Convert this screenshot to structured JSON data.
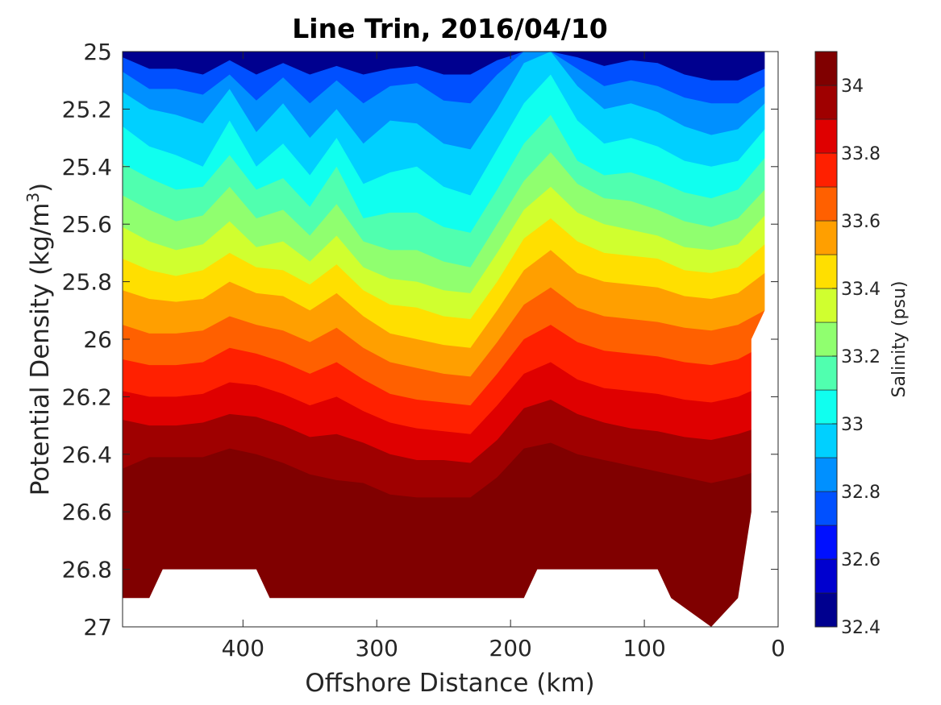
{
  "chart_data": {
    "type": "contour",
    "title": "Line Trin, 2016/04/10",
    "xlabel": "Offshore Distance (km)",
    "ylabel": "Potential Density (kg/m³)",
    "ylabel_base": "Potential Density (kg/m",
    "ylabel_sup": "3",
    "ylabel_end": ")",
    "x_reversed": true,
    "y_reversed": true,
    "xlim": [
      490,
      0
    ],
    "ylim": [
      25,
      27
    ],
    "xticks": [
      400,
      300,
      200,
      100,
      0
    ],
    "xtick_labels": [
      "400",
      "300",
      "200",
      "100",
      "0"
    ],
    "yticks": [
      25,
      25.2,
      25.4,
      25.6,
      25.8,
      26,
      26.2,
      26.4,
      26.6,
      26.8,
      27
    ],
    "ytick_labels": [
      "25",
      "25.2",
      "25.4",
      "25.6",
      "25.8",
      "26",
      "26.2",
      "26.4",
      "26.6",
      "26.8",
      "27"
    ],
    "colorbar": {
      "label": "Salinity (psu)",
      "range": [
        32.4,
        34.1
      ],
      "levels": [
        32.4,
        32.5,
        32.6,
        32.7,
        32.8,
        32.9,
        33.0,
        33.1,
        33.2,
        33.3,
        33.4,
        33.5,
        33.6,
        33.7,
        33.8,
        33.9,
        34.0,
        34.1
      ],
      "colors": [
        "#00008f",
        "#0000cf",
        "#0010ff",
        "#0050ff",
        "#0090ff",
        "#00d0ff",
        "#10ffef",
        "#50ffaf",
        "#90ff6f",
        "#d0ff2f",
        "#ffdf00",
        "#ff9f00",
        "#ff6000",
        "#ff2000",
        "#df0000",
        "#9f0000",
        "#800000"
      ],
      "ticks": [
        32.4,
        32.6,
        32.8,
        33.0,
        33.2,
        33.4,
        33.6,
        33.8,
        34.0
      ],
      "tick_labels": [
        "32.4",
        "32.6",
        "32.8",
        "33",
        "33.2",
        "33.4",
        "33.6",
        "33.8",
        "34"
      ]
    },
    "isopycnal_x": [
      490,
      470,
      450,
      430,
      410,
      390,
      370,
      350,
      330,
      310,
      290,
      270,
      250,
      230,
      210,
      190,
      170,
      150,
      130,
      110,
      90,
      70,
      50,
      30,
      10
    ],
    "isohalines": [
      {
        "salinity": 32.7,
        "density": [
          25.02,
          25.06,
          25.06,
          25.08,
          25.03,
          25.08,
          25.04,
          25.08,
          25.05,
          25.08,
          25.06,
          25.05,
          25.08,
          25.08,
          25.03,
          25.0,
          25.0,
          25.02,
          25.05,
          25.03,
          25.04,
          25.08,
          25.1,
          25.1,
          25.06
        ]
      },
      {
        "salinity": 32.8,
        "density": [
          25.07,
          25.13,
          25.13,
          25.15,
          25.08,
          25.17,
          25.09,
          25.18,
          25.1,
          25.18,
          25.12,
          25.11,
          25.17,
          25.18,
          25.08,
          25.0,
          25.0,
          25.06,
          25.12,
          25.1,
          25.12,
          25.16,
          25.18,
          25.18,
          25.12
        ]
      },
      {
        "salinity": 32.9,
        "density": [
          25.14,
          25.2,
          25.22,
          25.25,
          25.13,
          25.28,
          25.18,
          25.3,
          25.2,
          25.32,
          25.24,
          25.25,
          25.32,
          25.34,
          25.2,
          25.04,
          25.0,
          25.12,
          25.2,
          25.18,
          25.21,
          25.26,
          25.29,
          25.27,
          25.18
        ]
      },
      {
        "salinity": 33.0,
        "density": [
          25.26,
          25.33,
          25.36,
          25.4,
          25.24,
          25.4,
          25.32,
          25.43,
          25.3,
          25.46,
          25.42,
          25.4,
          25.47,
          25.5,
          25.34,
          25.18,
          25.08,
          25.24,
          25.32,
          25.3,
          25.33,
          25.38,
          25.4,
          25.38,
          25.27
        ]
      },
      {
        "salinity": 33.1,
        "density": [
          25.39,
          25.44,
          25.48,
          25.47,
          25.36,
          25.48,
          25.44,
          25.54,
          25.4,
          25.58,
          25.56,
          25.56,
          25.61,
          25.63,
          25.48,
          25.32,
          25.22,
          25.38,
          25.43,
          25.42,
          25.45,
          25.49,
          25.51,
          25.48,
          25.37
        ]
      },
      {
        "salinity": 33.2,
        "density": [
          25.5,
          25.55,
          25.59,
          25.57,
          25.47,
          25.58,
          25.55,
          25.64,
          25.53,
          25.66,
          25.69,
          25.69,
          25.73,
          25.75,
          25.6,
          25.45,
          25.35,
          25.46,
          25.51,
          25.52,
          25.55,
          25.59,
          25.61,
          25.58,
          25.48
        ]
      },
      {
        "salinity": 33.3,
        "density": [
          25.61,
          25.66,
          25.69,
          25.67,
          25.59,
          25.68,
          25.66,
          25.73,
          25.64,
          25.75,
          25.79,
          25.8,
          25.83,
          25.84,
          25.7,
          25.55,
          25.47,
          25.56,
          25.6,
          25.62,
          25.64,
          25.68,
          25.69,
          25.67,
          25.57
        ]
      },
      {
        "salinity": 33.4,
        "density": [
          25.72,
          25.76,
          25.78,
          25.76,
          25.7,
          25.75,
          25.76,
          25.81,
          25.74,
          25.83,
          25.88,
          25.89,
          25.92,
          25.93,
          25.8,
          25.65,
          25.58,
          25.66,
          25.7,
          25.71,
          25.72,
          25.76,
          25.77,
          25.75,
          25.67
        ]
      },
      {
        "salinity": 33.5,
        "density": [
          25.83,
          25.86,
          25.87,
          25.86,
          25.8,
          25.84,
          25.85,
          25.9,
          25.84,
          25.92,
          25.98,
          26.0,
          26.02,
          26.03,
          25.9,
          25.76,
          25.69,
          25.77,
          25.8,
          25.81,
          25.82,
          25.85,
          25.86,
          25.84,
          25.77
        ]
      },
      {
        "salinity": 33.6,
        "density": [
          25.95,
          25.98,
          25.98,
          25.97,
          25.92,
          25.95,
          25.97,
          26.01,
          25.96,
          26.03,
          26.08,
          26.1,
          26.12,
          26.13,
          26.01,
          25.88,
          25.82,
          25.89,
          25.92,
          25.93,
          25.94,
          25.96,
          25.97,
          25.95,
          25.9
        ]
      },
      {
        "salinity": 33.7,
        "density": [
          26.07,
          26.09,
          26.09,
          26.08,
          26.03,
          26.05,
          26.08,
          26.12,
          26.08,
          26.14,
          26.19,
          26.21,
          26.22,
          26.23,
          26.12,
          26.0,
          25.95,
          26.01,
          26.04,
          26.05,
          26.06,
          26.08,
          26.09,
          26.07,
          26.02
        ]
      },
      {
        "salinity": 33.8,
        "density": [
          26.18,
          26.2,
          26.2,
          26.19,
          26.15,
          26.16,
          26.19,
          26.23,
          26.2,
          26.25,
          26.29,
          26.31,
          26.32,
          26.33,
          26.23,
          26.12,
          26.08,
          26.14,
          26.17,
          26.18,
          26.19,
          26.21,
          26.22,
          26.2,
          26.16
        ]
      },
      {
        "salinity": 33.9,
        "density": [
          26.28,
          26.3,
          26.3,
          26.29,
          26.26,
          26.27,
          26.3,
          26.34,
          26.33,
          26.36,
          26.4,
          26.42,
          26.42,
          26.43,
          26.35,
          26.24,
          26.21,
          26.26,
          26.29,
          26.31,
          26.32,
          26.34,
          26.35,
          26.33,
          26.3
        ]
      },
      {
        "salinity": 34.0,
        "density": [
          26.45,
          26.41,
          26.41,
          26.41,
          26.38,
          26.4,
          26.43,
          26.47,
          26.49,
          26.5,
          26.54,
          26.55,
          26.55,
          26.55,
          26.48,
          26.38,
          26.36,
          26.4,
          26.42,
          26.44,
          26.46,
          26.48,
          26.5,
          26.48,
          26.45
        ]
      },
      {
        "salinity": 34.1,
        "density": [
          26.84,
          26.76,
          26.65,
          26.61,
          26.6,
          26.63,
          26.78,
          26.8,
          26.81,
          26.84,
          26.83,
          26.82,
          26.82,
          26.82,
          26.78,
          26.66,
          26.6,
          26.52,
          26.52,
          26.63,
          26.66,
          26.7,
          26.66,
          26.67,
          26.64
        ]
      }
    ],
    "data_boundary": {
      "bottom_x": [
        490,
        470,
        460,
        390,
        380,
        190,
        180,
        90,
        80,
        50,
        30,
        20
      ],
      "bottom_density": [
        26.9,
        26.9,
        26.8,
        26.8,
        26.9,
        26.9,
        26.8,
        26.8,
        26.9,
        27.0,
        26.9,
        26.6
      ],
      "edge_x": [
        20,
        20,
        10,
        10
      ],
      "edge_density": [
        26.6,
        26.0,
        25.9,
        25.0
      ]
    }
  }
}
